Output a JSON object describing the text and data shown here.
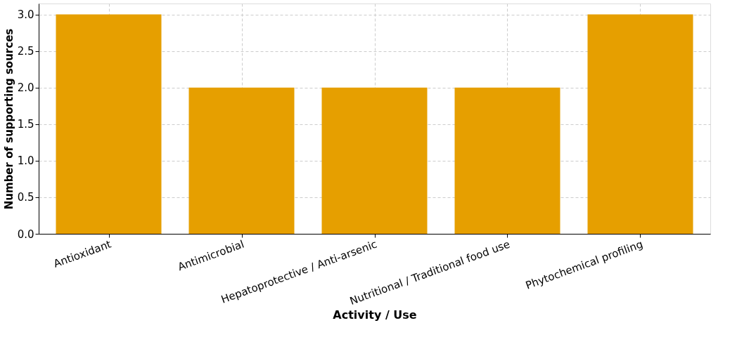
{
  "chart_data": {
    "type": "bar",
    "xlabel": "Activity / Use",
    "ylabel": "Number of supporting sources",
    "categories": [
      "Antioxidant",
      "Antimicrobial",
      "Hepatoprotective / Anti-arsenic",
      "Nutritional / Traditional food use",
      "Phytochemical profiling"
    ],
    "values": [
      3,
      2,
      2,
      2,
      3
    ],
    "color": "#e69f00",
    "ylim": [
      0,
      3.15
    ],
    "yticks": [
      {
        "value": 0,
        "label": "0.0"
      },
      {
        "value": 0.5,
        "label": "0.5"
      },
      {
        "value": 1,
        "label": "1.0"
      },
      {
        "value": 1.5,
        "label": "1.5"
      },
      {
        "value": 2,
        "label": "2.0"
      },
      {
        "value": 2.5,
        "label": "2.5"
      },
      {
        "value": 3,
        "label": "3.0"
      }
    ],
    "grid": true
  }
}
